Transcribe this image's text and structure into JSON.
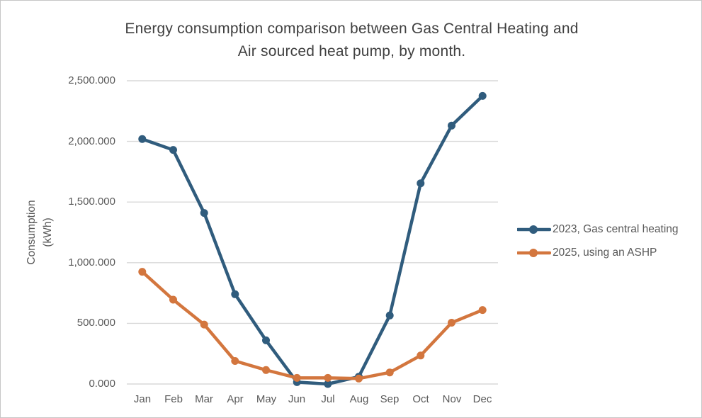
{
  "chart": {
    "title_line1": "Energy consumption comparison between Gas Central Heating and",
    "title_line2": "Air sourced heat pump, by month.",
    "y_axis_title_line1": "Consumption",
    "y_axis_title_line2": "(kWh)"
  },
  "chart_data": {
    "type": "line",
    "title": "Energy consumption comparison between Gas Central Heating and Air sourced heat pump, by month.",
    "categories": [
      "Jan",
      "Feb",
      "Mar",
      "Apr",
      "May",
      "Jun",
      "Jul",
      "Aug",
      "Sep",
      "Oct",
      "Nov",
      "Dec"
    ],
    "series": [
      {
        "name": "2023, Gas central heating",
        "color": "#305C7D",
        "values": [
          2020,
          1930,
          1410,
          740,
          360,
          15,
          0,
          60,
          565,
          1655,
          2130,
          2375
        ]
      },
      {
        "name": "2025, using an ASHP",
        "color": "#D3763E",
        "values": [
          925,
          695,
          490,
          190,
          115,
          50,
          50,
          45,
          95,
          235,
          505,
          610
        ]
      }
    ],
    "xlabel": "",
    "ylabel": "Consumption (kWh)",
    "ylim": [
      0,
      2500
    ],
    "y_ticks": [
      0,
      500,
      1000,
      1500,
      2000,
      2500
    ],
    "y_tick_labels": [
      "0.000",
      "500.000",
      "1,000.000",
      "1,500.000",
      "2,000.000",
      "2,500.000"
    ],
    "grid": true,
    "legend_position": "right",
    "marker": "circle",
    "colors": {
      "gridline": "#D9D9D9",
      "title_text": "#404040",
      "axis_text": "#595959",
      "legend_text": "#595959",
      "background": "#FFFFFF"
    }
  }
}
